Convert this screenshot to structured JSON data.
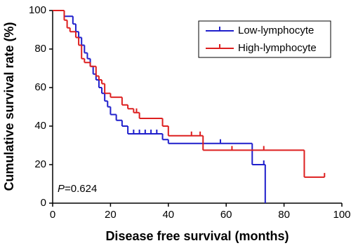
{
  "chart_data": {
    "type": "step",
    "xlabel": "Disease free survival (months)",
    "ylabel": "Cumulative survival rate (%)",
    "annotation": "P=0.624",
    "xlim": [
      0,
      100
    ],
    "xticks": [
      0,
      20,
      40,
      60,
      80,
      100
    ],
    "ylim": [
      0,
      100
    ],
    "yticks": [
      0,
      20,
      40,
      60,
      80,
      100
    ],
    "legend": "upper right",
    "series": [
      {
        "name": "Low-lymphocyte",
        "color": "#1f1fcc",
        "x": [
          0,
          4,
          7,
          8,
          9,
          10,
          11,
          12,
          13,
          14,
          15,
          16,
          17,
          18,
          19,
          20,
          22,
          24,
          26,
          38,
          40,
          69,
          73.5,
          73.5
        ],
        "values": [
          100,
          97,
          93,
          89,
          86,
          82,
          78,
          75,
          71,
          67,
          64,
          60,
          57,
          53,
          50,
          46,
          43,
          40,
          36,
          33,
          31,
          20,
          0,
          0
        ],
        "censor_x": [
          28,
          30,
          32,
          34,
          36,
          58,
          73
        ],
        "censor_values": [
          36,
          36,
          36,
          36,
          36,
          31,
          20
        ]
      },
      {
        "name": "High-lymphocyte",
        "color": "#dd1f1f",
        "x": [
          0,
          4,
          5,
          6,
          8,
          9,
          10,
          11,
          13,
          15,
          16,
          17,
          18,
          20,
          24,
          26,
          28,
          30,
          38,
          40,
          52,
          87,
          94
        ],
        "values": [
          100,
          95,
          91,
          89,
          86,
          82,
          75,
          73,
          71,
          66,
          64,
          62,
          57,
          55,
          51,
          49,
          47,
          44,
          40,
          35,
          27.5,
          13.5,
          13.5
        ],
        "censor_x": [
          29,
          48,
          51,
          62,
          73,
          94
        ],
        "censor_values": [
          47,
          35,
          35,
          27.5,
          27.5,
          13.5
        ]
      }
    ]
  }
}
